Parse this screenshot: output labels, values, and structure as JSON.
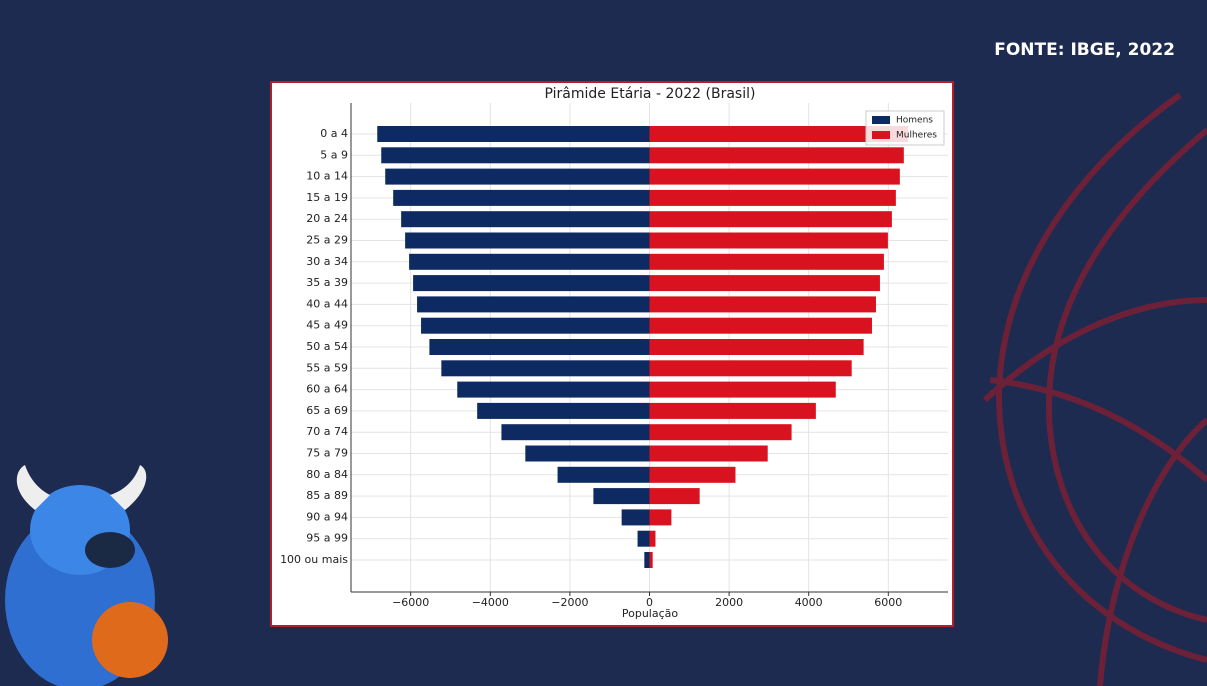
{
  "source": "FONTE: IBGE, 2022",
  "chart_data": {
    "type": "population-pyramid",
    "title": "Pirâmide Etária - 2022 (Brasil)",
    "xlabel": "População",
    "categories": [
      "0 a 4",
      "5 a 9",
      "10 a 14",
      "15 a 19",
      "20 a 24",
      "25 a 29",
      "30 a 34",
      "35 a 39",
      "40 a 44",
      "45 a 49",
      "50 a 54",
      "55 a 59",
      "60 a 64",
      "65 a 69",
      "70 a 74",
      "75 a 79",
      "80 a 84",
      "85 a 89",
      "90 a 94",
      "95 a 99",
      "100 ou mais"
    ],
    "series": [
      {
        "name": "Homens",
        "color": "#0d2a63",
        "values": [
          -6840,
          -6740,
          -6640,
          -6440,
          -6240,
          -6140,
          -6040,
          -5940,
          -5840,
          -5740,
          -5530,
          -5230,
          -4830,
          -4330,
          -3720,
          -3120,
          -2310,
          -1410,
          -700,
          -300,
          -130
        ]
      },
      {
        "name": "Mulheres",
        "color": "#d9121f",
        "values": [
          6500,
          6390,
          6290,
          6190,
          6090,
          5990,
          5890,
          5790,
          5690,
          5590,
          5380,
          5080,
          4680,
          4180,
          3570,
          2970,
          2160,
          1260,
          550,
          150,
          80
        ]
      }
    ],
    "xlim": [
      -7500,
      7500
    ],
    "xticks": [
      {
        "value": -6000,
        "label": "−6000"
      },
      {
        "value": -4000,
        "label": "−4000"
      },
      {
        "value": -2000,
        "label": "−2000"
      },
      0,
      2000,
      4000,
      6000
    ],
    "grid": true,
    "legend": "upper right"
  }
}
